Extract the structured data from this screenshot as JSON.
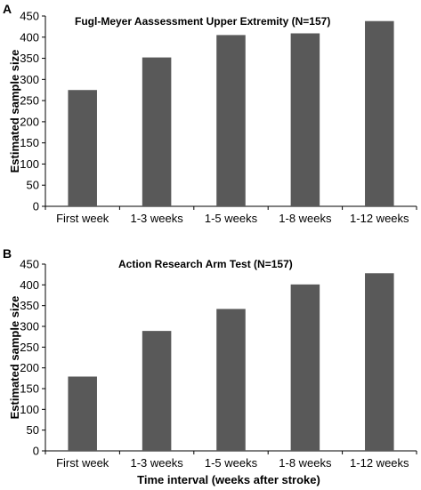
{
  "chart_data": [
    {
      "panel": "A",
      "type": "bar",
      "title": "Fugl-Meyer Aassessment Upper Extremity (N=157)",
      "xlabel": "",
      "ylabel": "Estimated sample size",
      "categories": [
        "First week",
        "1-3 weeks",
        "1-5 weeks",
        "1-8 weeks",
        "1-12 weeks"
      ],
      "values": [
        275,
        352,
        405,
        409,
        438
      ],
      "ylim": [
        0,
        450
      ],
      "yticks": [
        "0",
        "50",
        "100",
        "150",
        "200",
        "250",
        "300",
        "350",
        "400",
        "450"
      ],
      "bar_color": "#595959",
      "grid": false,
      "legend": false
    },
    {
      "panel": "B",
      "type": "bar",
      "title": "Action Research Arm Test (N=157)",
      "xlabel": "Time interval (weeks after stroke)",
      "ylabel": "Estimated sample size",
      "categories": [
        "First week",
        "1-3 weeks",
        "1-5 weeks",
        "1-8 weeks",
        "1-12 weeks"
      ],
      "values": [
        179,
        289,
        342,
        401,
        428
      ],
      "ylim": [
        0,
        450
      ],
      "yticks": [
        "0",
        "50",
        "100",
        "150",
        "200",
        "250",
        "300",
        "350",
        "400",
        "450"
      ],
      "bar_color": "#595959",
      "grid": false,
      "legend": false
    }
  ]
}
